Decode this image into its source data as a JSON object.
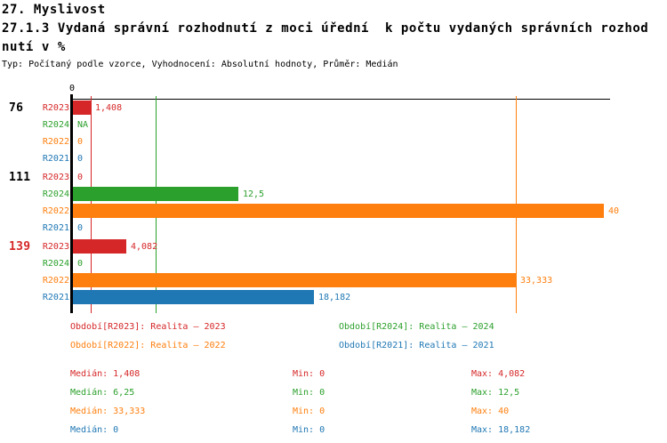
{
  "header": {
    "line1": "27. Myslivost",
    "line2": "27.1.3 Vydaná správní rozhodnutí z moci úřední  k počtu vydaných správních rozhod",
    "line3": "nutí v %",
    "meta": "Typ: Počítaný podle vzorce, Vyhodnocení: Absolutní hodnoty, Průměr: Medián"
  },
  "colors": {
    "R2023": "#d62728",
    "R2024": "#2ca02c",
    "R2022": "#ff7f0e",
    "R2021": "#1f77b4",
    "axis": "#000000",
    "group_label_highlight": "#d62728",
    "group_label_normal": "#000000"
  },
  "chart_data": {
    "type": "bar",
    "orientation": "horizontal",
    "unit": "%",
    "xlim": [
      0,
      40
    ],
    "zero_tick_label": "0",
    "series_order": [
      "R2023",
      "R2024",
      "R2022",
      "R2021"
    ],
    "groups": [
      {
        "label": "76",
        "label_color_key": "group_label_normal",
        "rows": [
          {
            "series": "R2023",
            "value": 1.408,
            "display": "1,408"
          },
          {
            "series": "R2024",
            "value": null,
            "display": "NA"
          },
          {
            "series": "R2022",
            "value": 0,
            "display": "0"
          },
          {
            "series": "R2021",
            "value": 0,
            "display": "0"
          }
        ]
      },
      {
        "label": "111",
        "label_color_key": "group_label_normal",
        "rows": [
          {
            "series": "R2023",
            "value": 0,
            "display": "0"
          },
          {
            "series": "R2024",
            "value": 12.5,
            "display": "12,5"
          },
          {
            "series": "R2022",
            "value": 40,
            "display": "40"
          },
          {
            "series": "R2021",
            "value": 0,
            "display": "0"
          }
        ]
      },
      {
        "label": "139",
        "label_color_key": "group_label_highlight",
        "rows": [
          {
            "series": "R2023",
            "value": 4.082,
            "display": "4,082"
          },
          {
            "series": "R2024",
            "value": 0,
            "display": "0"
          },
          {
            "series": "R2022",
            "value": 33.333,
            "display": "33,333"
          },
          {
            "series": "R2021",
            "value": 18.182,
            "display": "18,182"
          }
        ]
      }
    ],
    "medians": {
      "R2023": 1.408,
      "R2024": 6.25,
      "R2022": 33.333,
      "R2021": 0
    },
    "stats": [
      {
        "series": "R2023",
        "median": 1.408,
        "min": 0,
        "max": 4.082
      },
      {
        "series": "R2024",
        "median": 6.25,
        "min": 0,
        "max": 12.5
      },
      {
        "series": "R2022",
        "median": 33.333,
        "min": 0,
        "max": 40
      },
      {
        "series": "R2021",
        "median": 0,
        "min": 0,
        "max": 18.182
      }
    ]
  },
  "legend": [
    {
      "label": "Období[R2023]: Realita – 2023",
      "series": "R2023"
    },
    {
      "label": "Období[R2024]: Realita – 2024",
      "series": "R2024"
    },
    {
      "label": "Období[R2022]: Realita – 2022",
      "series": "R2022"
    },
    {
      "label": "Období[R2021]: Realita – 2021",
      "series": "R2021"
    }
  ],
  "stats_rows": [
    {
      "series": "R2023",
      "median": "Medián: 1,408",
      "min": "Min: 0",
      "max": "Max: 4,082"
    },
    {
      "series": "R2024",
      "median": "Medián: 6,25",
      "min": "Min: 0",
      "max": "Max: 12,5"
    },
    {
      "series": "R2022",
      "median": "Medián: 33,333",
      "min": "Min: 0",
      "max": "Max: 40"
    },
    {
      "series": "R2021",
      "median": "Medián: 0",
      "min": "Min: 0",
      "max": "Max: 18,182"
    }
  ]
}
